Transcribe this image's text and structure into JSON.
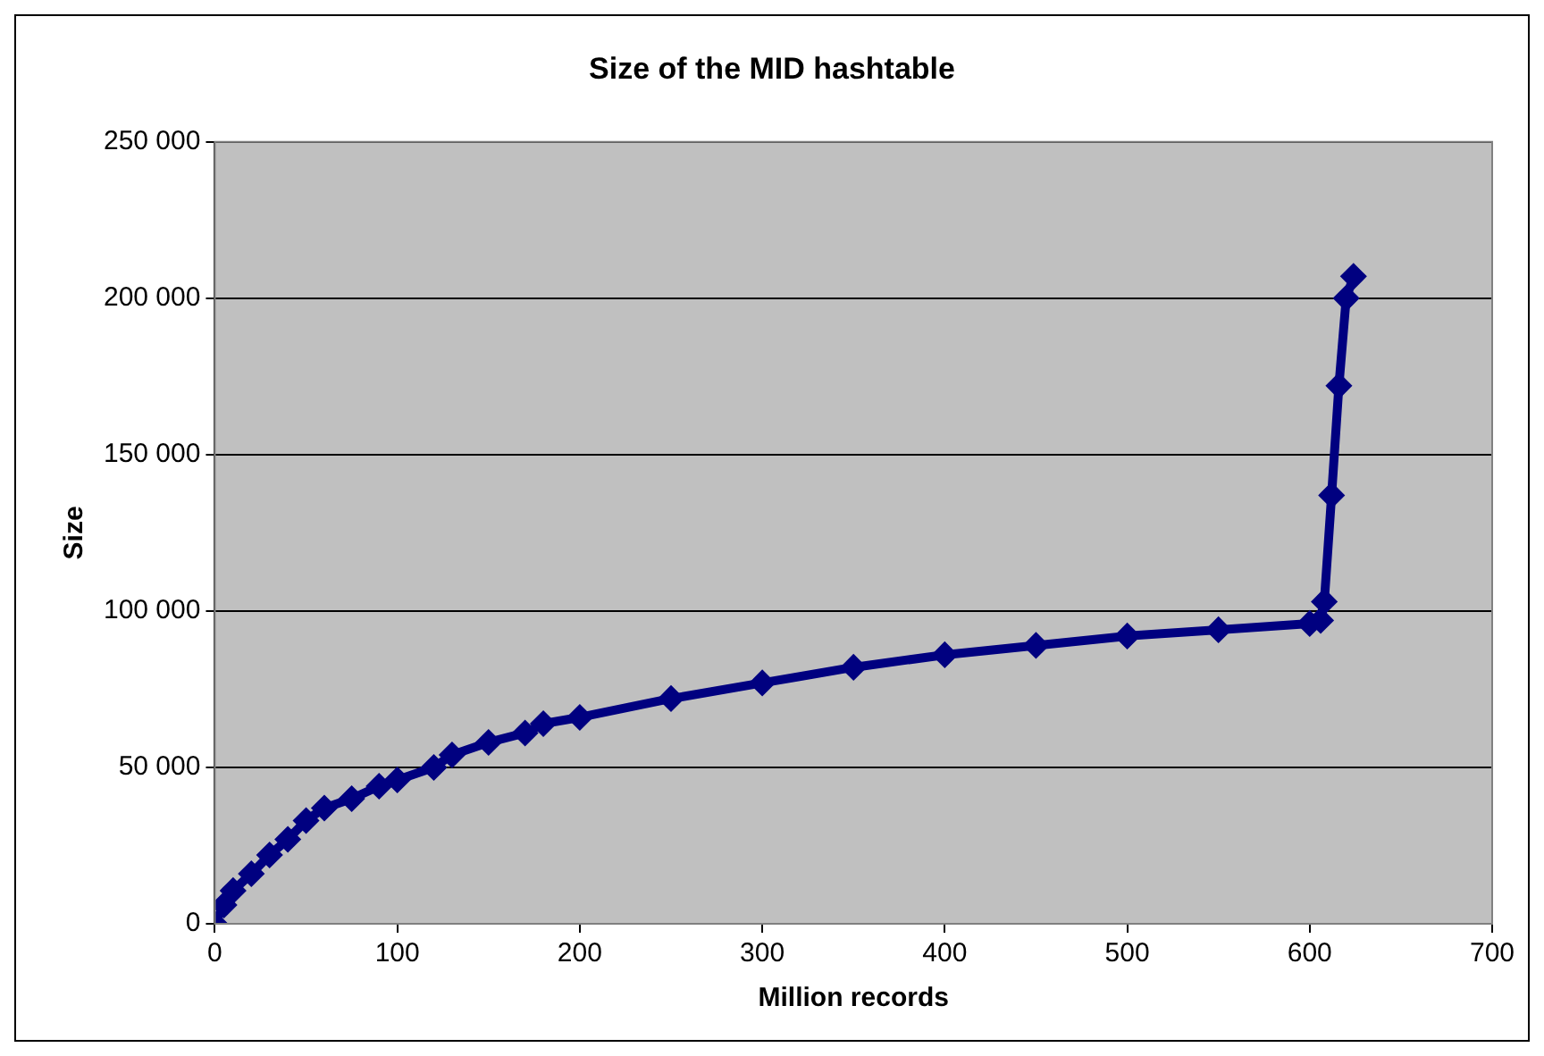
{
  "chart_data": {
    "type": "line",
    "title": "Size of the MID hashtable",
    "xlabel": "Million records",
    "ylabel": "Size",
    "series": [
      {
        "color": "#000080",
        "x": [
          0,
          5,
          10,
          20,
          30,
          40,
          50,
          60,
          75,
          90,
          100,
          120,
          130,
          150,
          170,
          180,
          200,
          250,
          300,
          350,
          400,
          450,
          500,
          550,
          600,
          606,
          608,
          612,
          616,
          620,
          624
        ],
        "values": [
          0,
          6000,
          10600,
          16000,
          22000,
          27000,
          33000,
          37000,
          40000,
          44000,
          46000,
          50000,
          54000,
          58000,
          61000,
          64000,
          66000,
          72000,
          77000,
          82000,
          86000,
          89000,
          92000,
          94000,
          96000,
          97000,
          103000,
          137000,
          172000,
          200000,
          207000
        ]
      }
    ],
    "xlim": [
      0,
      700
    ],
    "xticks": [
      0,
      100,
      200,
      300,
      400,
      500,
      600,
      700
    ],
    "ylim": [
      0,
      250000
    ],
    "yticks": [
      {
        "value": 0,
        "label": "0"
      },
      {
        "value": 50000,
        "label": "50 000"
      },
      {
        "value": 100000,
        "label": "100 000"
      },
      {
        "value": 150000,
        "label": "150 000"
      },
      {
        "value": 200000,
        "label": "200 000"
      },
      {
        "value": 250000,
        "label": "250 000"
      }
    ],
    "grid": "y",
    "legend": false,
    "marker": "diamond",
    "line_style": "solid"
  }
}
